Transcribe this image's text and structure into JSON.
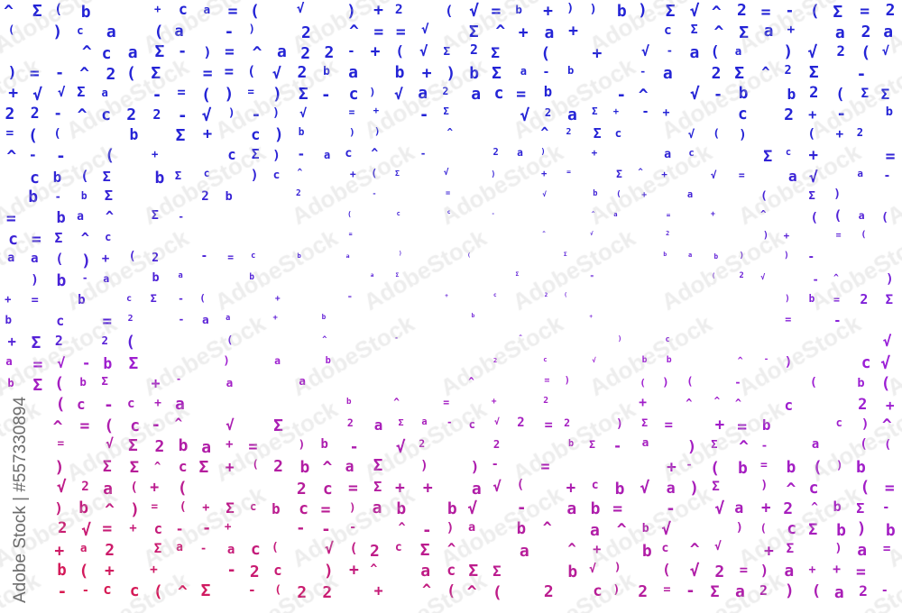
{
  "pattern": {
    "symbols": [
      "+",
      "a",
      "2",
      "^",
      "=",
      "b",
      "c",
      "Σ",
      "√",
      "(",
      ")",
      "-"
    ],
    "colors": {
      "top": "#2424d6",
      "middle": "#9a1fd8",
      "bottom": "#d81a50"
    },
    "background": "#ffffff"
  },
  "watermark": {
    "repeated_text": "AdobeStock",
    "label": "Adobe Stock | #557330894"
  }
}
